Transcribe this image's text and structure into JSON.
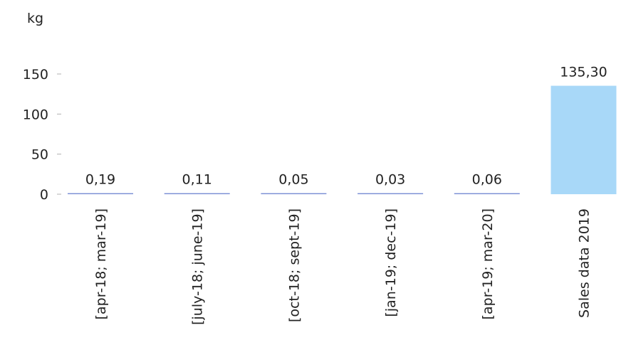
{
  "chart_data": {
    "type": "bar",
    "ylabel": "kg",
    "categories": [
      "[apr-18; mar-19]",
      "[july-18; june-19]",
      "[oct-18; sept-19]",
      "[jan-19; dec-19]",
      "[apr-19; mar-20]",
      "Sales data 2019"
    ],
    "values": [
      0.19,
      0.11,
      0.05,
      0.03,
      0.06,
      135.3
    ],
    "value_labels": [
      "0,19",
      "0,11",
      "0,05",
      "0,03",
      "0,06",
      "135,30"
    ],
    "bar_colors": [
      "#7f93d6",
      "#7f93d6",
      "#7f93d6",
      "#7f93d6",
      "#7f93d6",
      "#a8d8f8"
    ],
    "yticks": [
      0,
      50,
      100,
      150
    ],
    "ylim": [
      0,
      150
    ],
    "grid": false,
    "legend": "none"
  }
}
